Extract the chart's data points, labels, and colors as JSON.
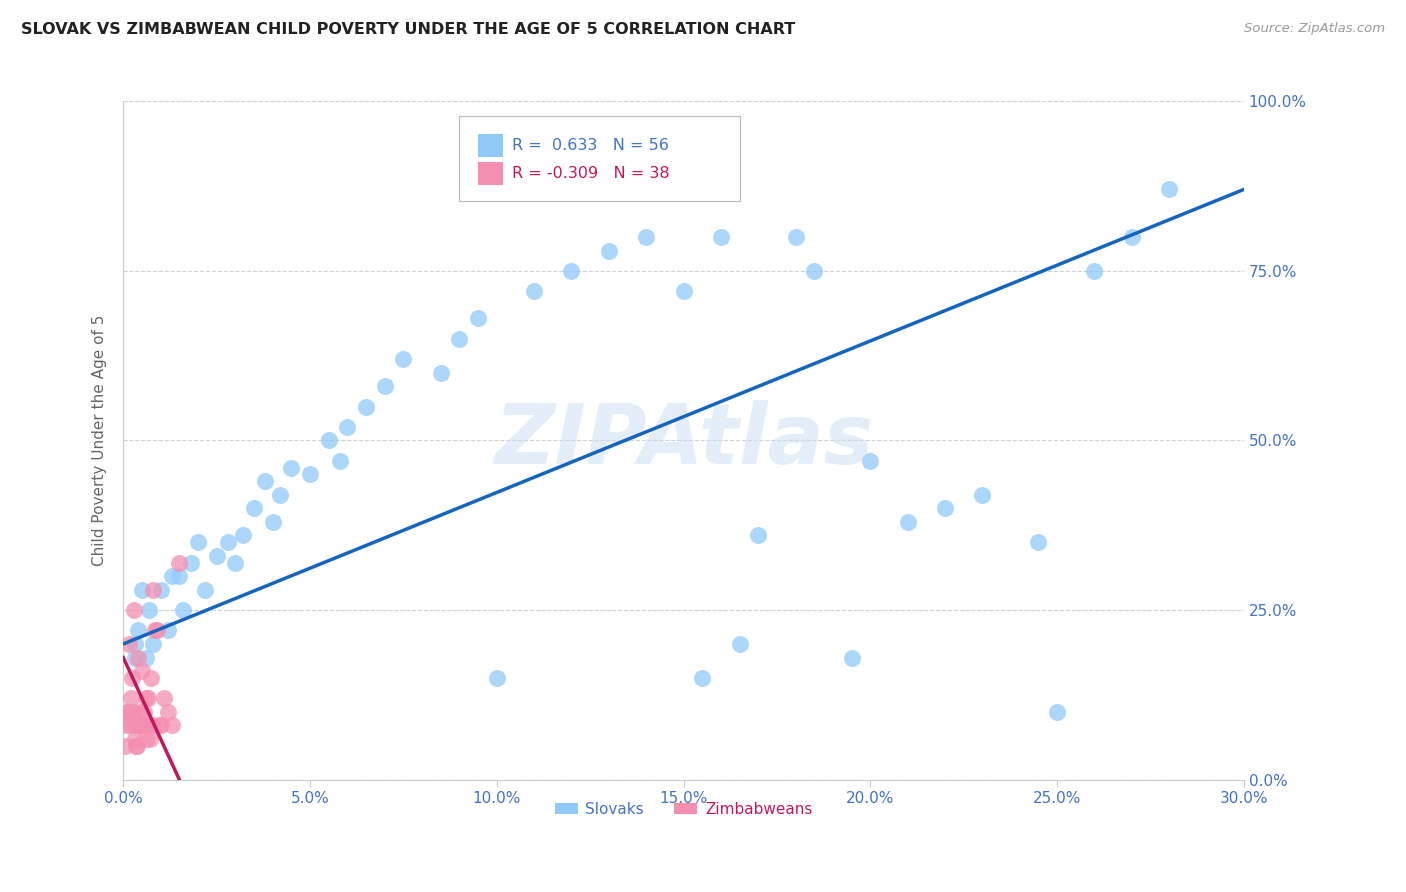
{
  "title": "SLOVAK VS ZIMBABWEAN CHILD POVERTY UNDER THE AGE OF 5 CORRELATION CHART",
  "source": "Source: ZipAtlas.com",
  "ylabel_label": "Child Poverty Under the Age of 5",
  "watermark": "ZIPAtlas",
  "legend_slovak_R": "0.633",
  "legend_slovak_N": "56",
  "legend_zimb_R": "-0.309",
  "legend_zimb_N": "38",
  "slovak_x": [
    0.3,
    0.3,
    1.2,
    0.7,
    0.5,
    1.5,
    2.0,
    1.8,
    0.8,
    1.0,
    0.6,
    1.3,
    2.5,
    3.2,
    2.8,
    3.5,
    4.0,
    3.8,
    4.5,
    5.0,
    4.2,
    5.5,
    6.0,
    5.8,
    6.5,
    7.0,
    7.5,
    8.5,
    9.0,
    9.5,
    10.0,
    11.0,
    12.0,
    13.0,
    14.0,
    15.0,
    16.0,
    17.0,
    18.0,
    18.5,
    20.0,
    21.0,
    22.0,
    23.0,
    24.5,
    25.0,
    26.0,
    27.0,
    28.0,
    15.5,
    16.5,
    19.5,
    0.4,
    1.6,
    2.2,
    3.0
  ],
  "slovak_y": [
    20,
    18,
    22,
    25,
    28,
    30,
    35,
    32,
    20,
    28,
    18,
    30,
    33,
    36,
    35,
    40,
    38,
    44,
    46,
    45,
    42,
    50,
    52,
    47,
    55,
    58,
    62,
    60,
    65,
    68,
    15,
    72,
    75,
    78,
    80,
    72,
    80,
    36,
    80,
    75,
    47,
    38,
    40,
    42,
    35,
    10,
    75,
    80,
    87,
    15,
    20,
    18,
    22,
    25,
    28,
    32
  ],
  "zimbabwean_x": [
    0.05,
    0.08,
    0.1,
    0.12,
    0.15,
    0.18,
    0.2,
    0.22,
    0.25,
    0.28,
    0.3,
    0.32,
    0.35,
    0.38,
    0.4,
    0.42,
    0.45,
    0.48,
    0.5,
    0.55,
    0.58,
    0.6,
    0.62,
    0.65,
    0.68,
    0.7,
    0.72,
    0.75,
    0.78,
    0.8,
    0.85,
    0.9,
    0.95,
    1.0,
    1.1,
    1.2,
    1.3,
    1.5
  ],
  "zimbabwean_y": [
    5,
    8,
    10,
    10,
    20,
    8,
    12,
    15,
    10,
    25,
    8,
    6,
    5,
    5,
    18,
    8,
    10,
    8,
    16,
    10,
    8,
    12,
    6,
    12,
    8,
    8,
    6,
    15,
    8,
    28,
    22,
    22,
    8,
    8,
    12,
    10,
    8,
    32
  ],
  "slovak_line_x0": 0,
  "slovak_line_x1": 30,
  "slovak_line_y0": 20,
  "slovak_line_y1": 87,
  "zimb_line_x0": 0,
  "zimb_line_x1": 1.5,
  "zimb_line_y0": 18,
  "zimb_line_y1": 0,
  "slovak_line_color": "#1565c0",
  "zimbabwean_line_color": "#c2185b",
  "slovak_scatter_color": "#90caf9",
  "zimbabwean_scatter_color": "#f48fb1",
  "background_color": "#ffffff",
  "grid_color": "#d0d0d0",
  "xlim": [
    0,
    30
  ],
  "ylim": [
    0,
    100
  ],
  "x_ticks": [
    0,
    5,
    10,
    15,
    20,
    25,
    30
  ],
  "y_ticks": [
    0,
    25,
    50,
    75,
    100
  ]
}
